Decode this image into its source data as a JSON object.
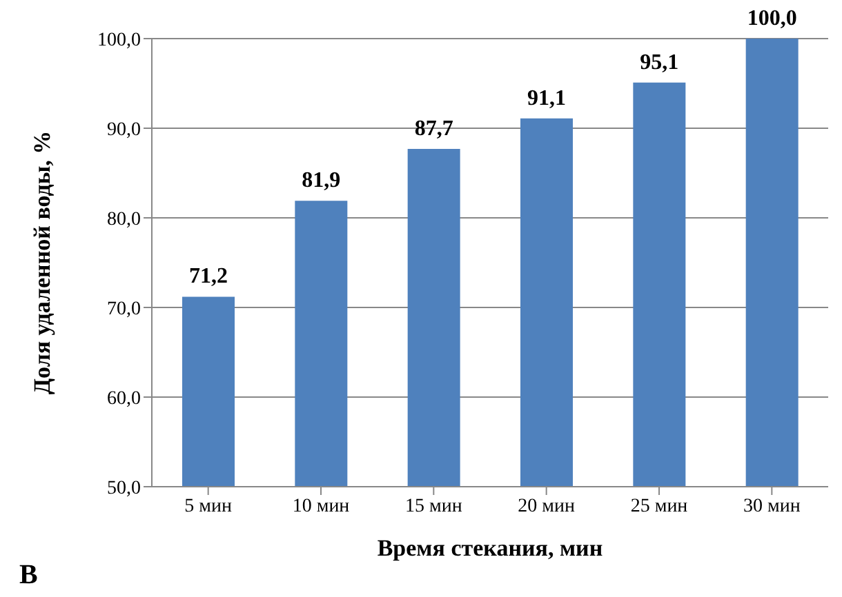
{
  "chart_data": {
    "type": "bar",
    "categories": [
      "5 мин",
      "10 мин",
      "15 мин",
      "20 мин",
      "25 мин",
      "30 мин"
    ],
    "values": [
      71.2,
      81.9,
      87.7,
      91.1,
      95.1,
      100.0
    ],
    "value_labels": [
      "71,2",
      "81,9",
      "87,7",
      "91,1",
      "95,1",
      "100,0"
    ],
    "color": "#4f81bd",
    "xlabel": "Время стекания, мин",
    "ylabel": "Доля удаленной воды, %",
    "ylim": [
      50,
      100
    ],
    "yticks": [
      {
        "value": 50,
        "label": "50,0"
      },
      {
        "value": 60,
        "label": "60,0"
      },
      {
        "value": 70,
        "label": "70,0"
      },
      {
        "value": 80,
        "label": "80,0"
      },
      {
        "value": 90,
        "label": "90,0"
      },
      {
        "value": 100,
        "label": "100,0"
      }
    ],
    "grid": "y",
    "legend": false,
    "annotations": [
      "В"
    ]
  }
}
